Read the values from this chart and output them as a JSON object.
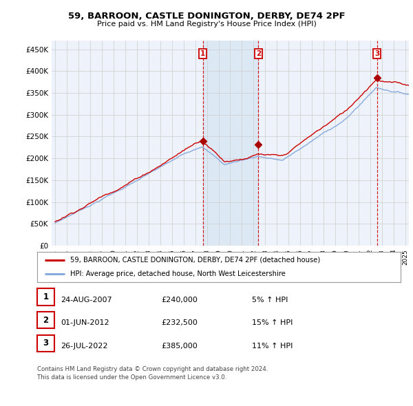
{
  "title": "59, BARROON, CASTLE DONINGTON, DERBY, DE74 2PF",
  "subtitle": "Price paid vs. HM Land Registry's House Price Index (HPI)",
  "yticks": [
    0,
    50000,
    100000,
    150000,
    200000,
    250000,
    300000,
    350000,
    400000,
    450000
  ],
  "ytick_labels": [
    "£0",
    "£50K",
    "£100K",
    "£150K",
    "£200K",
    "£250K",
    "£300K",
    "£350K",
    "£400K",
    "£450K"
  ],
  "ylim": [
    0,
    470000
  ],
  "xmin_year": 1995,
  "xmax_year": 2025,
  "xtick_years": [
    1995,
    1996,
    1997,
    1998,
    1999,
    2000,
    2001,
    2002,
    2003,
    2004,
    2005,
    2006,
    2007,
    2008,
    2009,
    2010,
    2011,
    2012,
    2013,
    2014,
    2015,
    2016,
    2017,
    2018,
    2019,
    2020,
    2021,
    2022,
    2023,
    2024,
    2025
  ],
  "sale_dates_num": [
    2007.648,
    2012.414,
    2022.565
  ],
  "sale_prices": [
    240000,
    232500,
    385000
  ],
  "sale_labels": [
    "1",
    "2",
    "3"
  ],
  "sale_date_strings": [
    "24-AUG-2007",
    "01-JUN-2012",
    "26-JUL-2022"
  ],
  "vline_color": "#cc0000",
  "sale_marker_color": "#aa0000",
  "hpi_line_color": "#88aadd",
  "property_line_color": "#cc0000",
  "shade_color": "#dde8f5",
  "legend_label_property": "59, BARROON, CASTLE DONINGTON, DERBY, DE74 2PF (detached house)",
  "legend_label_hpi": "HPI: Average price, detached house, North West Leicestershire",
  "table_rows": [
    [
      "1",
      "24-AUG-2007",
      "£240,000",
      "5% ↑ HPI"
    ],
    [
      "2",
      "01-JUN-2012",
      "£232,500",
      "15% ↑ HPI"
    ],
    [
      "3",
      "26-JUL-2022",
      "£385,000",
      "11% ↑ HPI"
    ]
  ],
  "footnote": "Contains HM Land Registry data © Crown copyright and database right 2024.\nThis data is licensed under the Open Government Licence v3.0.",
  "bg_chart": "#eef2fa",
  "bg_figure": "#ffffff",
  "grid_color": "#cccccc"
}
